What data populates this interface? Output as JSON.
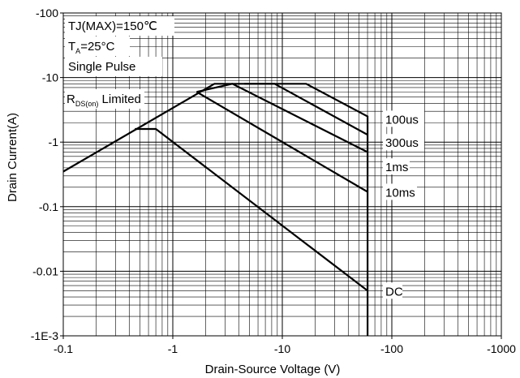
{
  "chart_data": {
    "type": "line",
    "title": "",
    "xlabel": "Drain-Source Voltage (V)",
    "ylabel": "Drain Current(A)",
    "x_scale": "log",
    "y_scale": "log",
    "xlim": [
      -0.1,
      -1000
    ],
    "ylim": [
      -0.001,
      -100
    ],
    "x_ticks": [
      {
        "value": -0.1,
        "label": "-0.1"
      },
      {
        "value": -1,
        "label": "-1"
      },
      {
        "value": -10,
        "label": "-10"
      },
      {
        "value": -100,
        "label": "-100"
      },
      {
        "value": -1000,
        "label": "-1000"
      }
    ],
    "y_ticks": [
      {
        "value": -100,
        "label": "-100"
      },
      {
        "value": -10,
        "label": "-10"
      },
      {
        "value": -1,
        "label": "-1"
      },
      {
        "value": -0.1,
        "label": "-0.1"
      },
      {
        "value": -0.01,
        "label": "-0.01"
      },
      {
        "value": -0.001,
        "label": "-1E-3"
      }
    ],
    "grid": true,
    "conditions": {
      "tj": "TJ(MAX)=150℃",
      "ta_main": "T",
      "ta_sub": "A",
      "ta_rest": "=25°C",
      "pulse": "Single Pulse"
    },
    "rds_label": {
      "main": "R",
      "sub": "DS(on)",
      "rest": " Limited"
    },
    "series": [
      {
        "name": "100us",
        "x": [
          -0.1,
          -2.4,
          -16.5,
          -60,
          -60
        ],
        "y": [
          -0.35,
          -8,
          -8,
          -2.5,
          -0.001
        ]
      },
      {
        "name": "300us",
        "x": [
          -4.5,
          -8.5,
          -60
        ],
        "y": [
          -8,
          -8,
          -1.3
        ]
      },
      {
        "name": "1ms",
        "x": [
          -1.65,
          -3.5,
          -60
        ],
        "y": [
          -6,
          -8,
          -0.7
        ]
      },
      {
        "name": "10ms",
        "x": [
          -1.65,
          -60
        ],
        "y": [
          -6,
          -0.17
        ]
      },
      {
        "name": "DC",
        "x": [
          -0.45,
          -0.7,
          -60
        ],
        "y": [
          -1.6,
          -1.6,
          -0.005
        ]
      }
    ],
    "series_labels": [
      {
        "name": "100us",
        "label": "100us",
        "at_y": -2.3
      },
      {
        "name": "300us",
        "label": "300us",
        "at_y": -1.0
      },
      {
        "name": "1ms",
        "label": "1ms",
        "at_y": -0.42
      },
      {
        "name": "10ms",
        "label": "10ms",
        "at_y": -0.17
      },
      {
        "name": "DC",
        "label": "DC",
        "at_y": -0.005
      }
    ]
  }
}
